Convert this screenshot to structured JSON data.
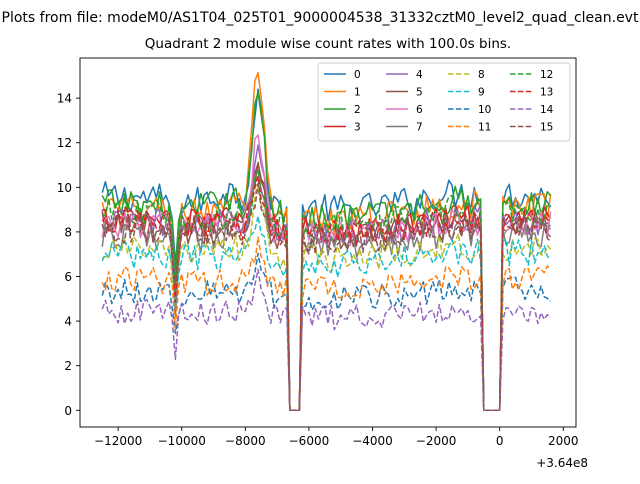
{
  "figure": {
    "suptitle": "Plots from file: modeM0/AS1T04_025T01_9000004538_31332cztM0_level2_quad_clean.evt",
    "title": "Quadrant 2 module wise count rates with 100.0s bins.",
    "x_offset_label": "+3.64e8"
  },
  "colors": {
    "palette": [
      "#1f77b4",
      "#ff7f0e",
      "#2ca02c",
      "#d62728",
      "#9467bd",
      "#8c564b",
      "#e377c2",
      "#7f7f7f",
      "#bcbd22",
      "#17becf"
    ]
  },
  "chart_data": {
    "type": "line",
    "title": "Quadrant 2 module wise count rates with 100.0s bins.",
    "xlabel": "",
    "ylabel": "",
    "x_offset": 364000000,
    "xlim": [
      -13200,
      2400
    ],
    "ylim": [
      -0.75,
      15.8
    ],
    "xticks": [
      -12000,
      -10000,
      -8000,
      -6000,
      -4000,
      -2000,
      0,
      2000
    ],
    "yticks": [
      0,
      2,
      4,
      6,
      8,
      10,
      12,
      14
    ],
    "grid": false,
    "legend": {
      "location": "upper right",
      "columns": 4
    },
    "series": [
      {
        "name": "0",
        "base": 9.3,
        "peak": 14.4,
        "color": "#1f77b4",
        "dashed": false
      },
      {
        "name": "1",
        "base": 8.8,
        "peak": 15.1,
        "color": "#ff7f0e",
        "dashed": false
      },
      {
        "name": "2",
        "base": 9.0,
        "peak": 14.2,
        "color": "#2ca02c",
        "dashed": false
      },
      {
        "name": "3",
        "base": 8.3,
        "peak": 11.0,
        "color": "#d62728",
        "dashed": false
      },
      {
        "name": "4",
        "base": 8.2,
        "peak": 11.8,
        "color": "#9467bd",
        "dashed": false
      },
      {
        "name": "5",
        "base": 8.0,
        "peak": 11.0,
        "color": "#8c564b",
        "dashed": false
      },
      {
        "name": "6",
        "base": 8.1,
        "peak": 12.2,
        "color": "#e377c2",
        "dashed": false
      },
      {
        "name": "7",
        "base": 7.6,
        "peak": 10.6,
        "color": "#7f7f7f",
        "dashed": false
      },
      {
        "name": "8",
        "base": 7.0,
        "peak": 10.0,
        "color": "#bcbd22",
        "dashed": true
      },
      {
        "name": "9",
        "base": 6.8,
        "peak": 8.5,
        "color": "#17becf",
        "dashed": true
      },
      {
        "name": "10",
        "base": 5.2,
        "peak": 6.8,
        "color": "#1f77b4",
        "dashed": true
      },
      {
        "name": "11",
        "base": 5.7,
        "peak": 7.5,
        "color": "#ff7f0e",
        "dashed": true
      },
      {
        "name": "12",
        "base": 8.6,
        "peak": 10.5,
        "color": "#2ca02c",
        "dashed": true
      },
      {
        "name": "13",
        "base": 8.2,
        "peak": 10.2,
        "color": "#d62728",
        "dashed": true
      },
      {
        "name": "14",
        "base": 4.3,
        "peak": 6.0,
        "color": "#9467bd",
        "dashed": true
      },
      {
        "name": "15",
        "base": 7.9,
        "peak": 9.8,
        "color": "#8c564b",
        "dashed": true
      }
    ],
    "x_range": [
      -12500,
      1600
    ],
    "bin_width": 100,
    "gaps": [
      [
        -6700,
        -6200
      ],
      [
        -600,
        100
      ]
    ],
    "dip_at": -10200,
    "flare_at": -7600
  }
}
